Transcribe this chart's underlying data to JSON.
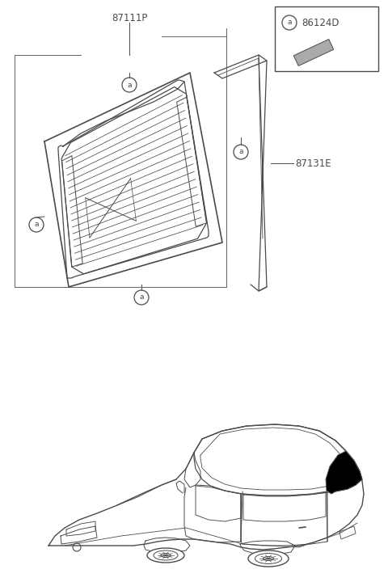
{
  "bg_color": "#ffffff",
  "line_color": "#4a4a4a",
  "fig_width": 4.8,
  "fig_height": 7.2,
  "dpi": 100,
  "label_87111P": "87111P",
  "label_87131E": "87131E",
  "label_86124D": "86124D",
  "label_a": "a"
}
